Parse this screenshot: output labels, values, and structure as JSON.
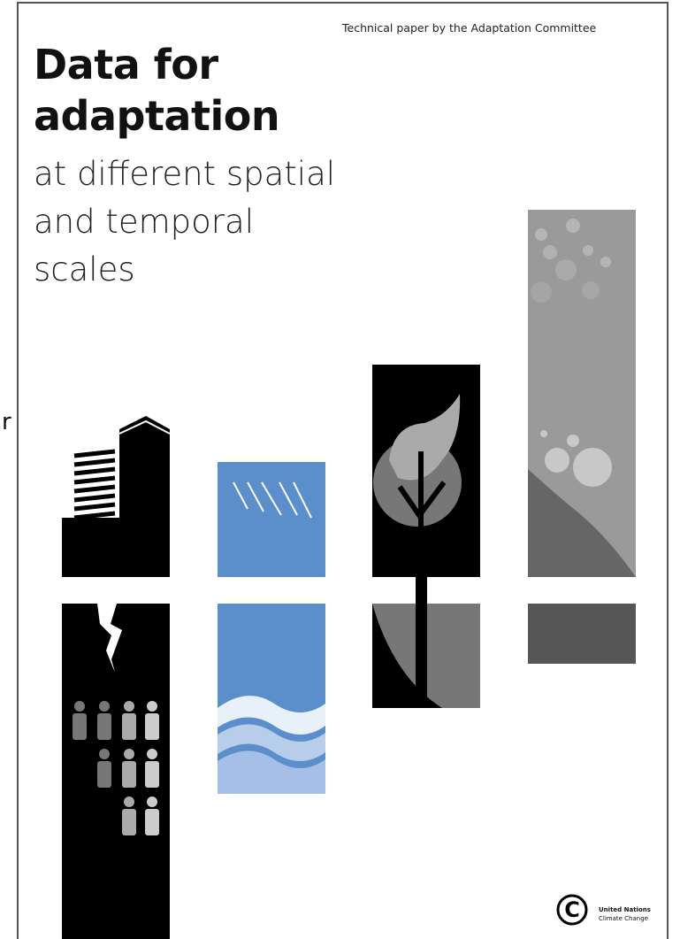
{
  "edge_text": "r",
  "cover": {
    "series_label": "Technical paper by the Adaptation Committee",
    "title_lines": [
      "Data for",
      "adaptation"
    ],
    "subtitle_lines": [
      "at different spatial",
      "and temporal",
      "scales"
    ],
    "publisher": {
      "line1": "United Nations",
      "line2": "Climate Change"
    }
  }
}
